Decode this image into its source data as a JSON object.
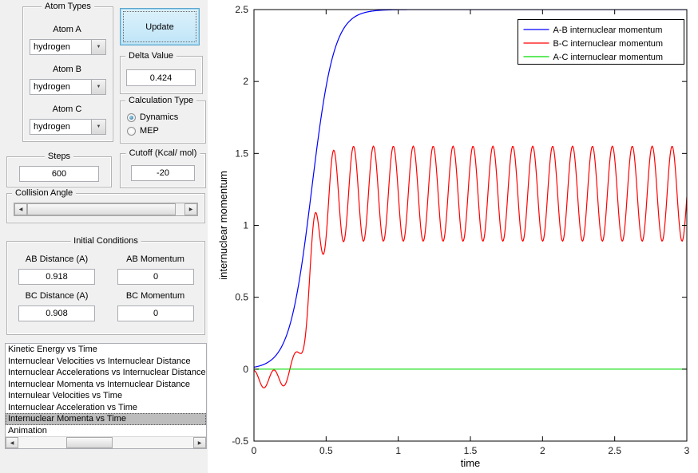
{
  "colors": {
    "window_bg": "#f0f0f0",
    "figure_bg": "#ffffff",
    "selection_bg": "#bdbdbd",
    "update_button_fill": "#cde9f8",
    "update_button_border": "#5ea6cd"
  },
  "icons": {
    "dropdown_arrow": "▼",
    "arrow_left": "◀",
    "arrow_right": "▶"
  },
  "panels": {
    "atom_types": {
      "title": "Atom Types",
      "atoms": [
        {
          "label": "Atom A",
          "value": "hydrogen"
        },
        {
          "label": "Atom B",
          "value": "hydrogen"
        },
        {
          "label": "Atom C",
          "value": "hydrogen"
        }
      ]
    },
    "update_button": "Update",
    "delta": {
      "title": "Delta Value",
      "value": "0.424"
    },
    "calculation": {
      "title": "Calculation Type",
      "options": [
        {
          "label": "Dynamics",
          "selected": true
        },
        {
          "label": "MEP",
          "selected": false
        }
      ]
    },
    "steps": {
      "title": "Steps",
      "value": "600"
    },
    "cutoff": {
      "title": "Cutoff (Kcal/ mol)",
      "value": "-20"
    },
    "collision": {
      "title": "Collision Angle"
    },
    "initial_conditions": {
      "title": "Initial Conditions",
      "fields": [
        {
          "label": "AB Distance (A)",
          "value": "0.918"
        },
        {
          "label": "AB Momentum",
          "value": "0"
        },
        {
          "label": "BC Distance (A)",
          "value": "0.908"
        },
        {
          "label": "BC Momentum",
          "value": "0"
        }
      ]
    },
    "plot_list": {
      "items": [
        "Kinetic Energy vs Time",
        "Internuclear Velocities vs Internuclear Distance",
        "Internuclear Accelerations vs Internuclear Distance",
        "Internuclear Momenta vs Internuclear Distance",
        "Internulear Velocities vs Time",
        "Internuclear Acceleration vs Time",
        "Internuclear Momenta vs Time",
        "Animation"
      ],
      "selected_index": 6,
      "selected_item": "Internuclear Momenta vs Time"
    }
  },
  "chart_data": {
    "type": "line",
    "title": "",
    "xlabel": "time",
    "ylabel": "internuclear momentum",
    "xlim": [
      0,
      3
    ],
    "ylim": [
      -0.5,
      2.5
    ],
    "xticks": [
      0,
      0.5,
      1,
      1.5,
      2,
      2.5,
      3
    ],
    "yticks": [
      -0.5,
      0,
      0.5,
      1,
      1.5,
      2,
      2.5
    ],
    "grid": false,
    "legend_position": "top-right",
    "sampling": {
      "t_start": 0,
      "t_end": 3,
      "dt": 0.004
    },
    "series": [
      {
        "name": "A-B internuclear momentum",
        "color": "#0000ff",
        "model": "logistic",
        "params": {
          "amplitude": 2.5,
          "midpoint": 0.4,
          "rate": 13
        },
        "description": "Sigmoidal rise from ~0 at t=0 to a plateau of 2.5 reached near t=1 and held to t=3"
      },
      {
        "name": "B-C internuclear momentum",
        "color": "#ff0000",
        "model": "envelope_oscillation",
        "params": {
          "base_start": -0.07,
          "base_end": 1.22,
          "amp_start": 0.06,
          "amp_end": 0.33,
          "midpoint": 0.385,
          "rate": 24,
          "period": 0.138,
          "peak_time": 0.414
        },
        "description": "Small oscillation near -0.1 for t<0.3, then jumps up and oscillates steadily between ~0.9 and ~1.55 with period ~0.14"
      },
      {
        "name": "A-C internuclear momentum",
        "color": "#00dd00",
        "model": "constant",
        "params": {
          "value": 0
        },
        "description": "Constant zero line"
      }
    ]
  }
}
